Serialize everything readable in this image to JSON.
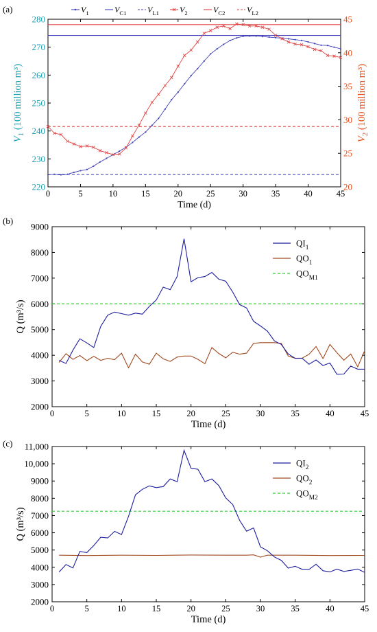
{
  "colors": {
    "axis": "#000000",
    "v1": "#4040b8",
    "vc1": "#4040b8",
    "vl1": "#4040b8",
    "v2": "#e04040",
    "vc2": "#e04040",
    "vl2": "#e04040",
    "left_axis_text": "#1aa0b4",
    "right_axis_text": "#e8501c",
    "qi": "#1c1c9c",
    "qo": "#a04a20",
    "qom": "#2ccf2c"
  },
  "chart_data": [
    {
      "panel_label": "(a)",
      "type": "line",
      "xlabel": "Time (d)",
      "xlim": [
        0,
        45
      ],
      "xticks": [
        "0",
        "5",
        "10",
        "15",
        "20",
        "25",
        "30",
        "35",
        "40",
        "45"
      ],
      "ylabel_left": "V1 (100 million m³)",
      "ylim_left": [
        220,
        280
      ],
      "yticks_left": [
        "220",
        "230",
        "240",
        "250",
        "260",
        "270",
        "280"
      ],
      "ylabel_right": "V2 (100 million m³)",
      "ylim_right": [
        20,
        45
      ],
      "yticks_right": [
        "20",
        "25",
        "30",
        "35",
        "40",
        "45"
      ],
      "legend": [
        "V1",
        "VC1",
        "VL1",
        "V2",
        "VC2",
        "VL2"
      ],
      "legend_position": "top",
      "series": [
        {
          "name": "V1",
          "axis": "left",
          "x": [
            0,
            1,
            2,
            3,
            4,
            5,
            6,
            7,
            8,
            9,
            10,
            11,
            12,
            13,
            14,
            15,
            16,
            17,
            18,
            19,
            20,
            21,
            22,
            23,
            24,
            25,
            26,
            27,
            28,
            29,
            30,
            31,
            32,
            33,
            34,
            35,
            36,
            37,
            38,
            39,
            40,
            41,
            42,
            43,
            44,
            45
          ],
          "values": [
            224.5,
            224.5,
            224.3,
            224.5,
            225.2,
            225.8,
            226.2,
            227.4,
            228.9,
            230.2,
            231.5,
            232.8,
            234.2,
            235.9,
            237.8,
            239.6,
            242.0,
            244.5,
            247.8,
            251.2,
            253.9,
            256.9,
            259.8,
            262.3,
            265.0,
            267.6,
            269.4,
            271.0,
            272.4,
            273.3,
            273.9,
            274.0,
            274.0,
            273.8,
            273.6,
            273.4,
            273.2,
            273.0,
            272.7,
            272.4,
            271.9,
            271.3,
            270.7,
            270.6,
            270.0,
            269.4
          ]
        },
        {
          "name": "V2",
          "axis": "right",
          "x": [
            0,
            1,
            2,
            3,
            4,
            5,
            6,
            7,
            8,
            9,
            10,
            11,
            12,
            13,
            14,
            15,
            16,
            17,
            18,
            19,
            20,
            21,
            22,
            23,
            24,
            25,
            26,
            27,
            28,
            29,
            30,
            31,
            32,
            33,
            34,
            35,
            36,
            37,
            38,
            39,
            40,
            41,
            42,
            43,
            44,
            45
          ],
          "values": [
            29.0,
            28.0,
            27.8,
            26.8,
            26.4,
            26.0,
            26.1,
            25.9,
            25.4,
            25.1,
            24.8,
            24.9,
            25.8,
            27.6,
            29.2,
            31.0,
            32.6,
            33.8,
            35.1,
            36.3,
            38.0,
            39.6,
            40.4,
            41.6,
            42.9,
            43.3,
            43.8,
            44.0,
            43.6,
            44.3,
            44.2,
            44.0,
            44.0,
            43.8,
            43.5,
            42.6,
            42.1,
            41.6,
            41.3,
            41.2,
            40.9,
            40.5,
            40.3,
            39.6,
            39.5,
            39.3
          ]
        },
        {
          "name": "VC1",
          "axis": "left",
          "constant": 274.2
        },
        {
          "name": "VL1",
          "axis": "left",
          "constant": 224.5
        },
        {
          "name": "VC2",
          "axis": "right",
          "constant": 44.2
        },
        {
          "name": "VL2",
          "axis": "right",
          "constant": 29.0
        }
      ]
    },
    {
      "panel_label": "(b)",
      "type": "line",
      "xlabel": "Time (d)",
      "xlim": [
        0,
        45
      ],
      "xticks": [
        "0",
        "5",
        "10",
        "15",
        "20",
        "25",
        "30",
        "35",
        "40",
        "45"
      ],
      "ylabel": "Q (m³/s)",
      "ylim": [
        2000,
        9000
      ],
      "yticks": [
        "2000",
        "3000",
        "4000",
        "5000",
        "6000",
        "7000",
        "8000",
        "9000"
      ],
      "legend": [
        "QI1",
        "QO1",
        "QOM1"
      ],
      "legend_position": "top-right",
      "series": [
        {
          "name": "QI1",
          "x": [
            1,
            2,
            3,
            4,
            5,
            6,
            7,
            8,
            9,
            10,
            11,
            12,
            13,
            14,
            15,
            16,
            17,
            18,
            19,
            20,
            21,
            22,
            23,
            24,
            25,
            26,
            27,
            28,
            29,
            30,
            31,
            32,
            33,
            34,
            35,
            36,
            37,
            38,
            39,
            40,
            41,
            42,
            43,
            44,
            45
          ],
          "values": [
            3800,
            3680,
            4200,
            4640,
            4480,
            4300,
            5120,
            5560,
            5680,
            5620,
            5560,
            5640,
            5600,
            5900,
            6150,
            6650,
            6550,
            7060,
            8530,
            6860,
            7020,
            7060,
            7220,
            6960,
            6880,
            6460,
            5970,
            5840,
            5320,
            5140,
            4940,
            4560,
            4420,
            4050,
            3880,
            3880,
            3650,
            3820,
            3600,
            3700,
            3260,
            3270,
            3580,
            3460,
            3460
          ]
        },
        {
          "name": "QO1",
          "x": [
            1,
            2,
            3,
            4,
            5,
            6,
            7,
            8,
            9,
            10,
            11,
            12,
            13,
            14,
            15,
            16,
            17,
            18,
            19,
            20,
            21,
            22,
            23,
            24,
            25,
            26,
            27,
            28,
            29,
            30,
            31,
            32,
            33,
            34,
            35,
            36,
            37,
            38,
            39,
            40,
            41,
            42,
            43,
            44,
            45
          ],
          "values": [
            3720,
            4060,
            3840,
            3990,
            3790,
            3960,
            3800,
            3880,
            3830,
            4080,
            3510,
            4040,
            3740,
            3650,
            4080,
            3860,
            3760,
            3930,
            3970,
            3970,
            3840,
            3670,
            4300,
            4070,
            3900,
            4120,
            4040,
            4080,
            4460,
            4490,
            4490,
            4490,
            4460,
            3970,
            3880,
            3890,
            4040,
            4340,
            3870,
            4420,
            4100,
            3810,
            4050,
            3550,
            4180
          ]
        },
        {
          "name": "QOM1",
          "constant": 6000
        }
      ]
    },
    {
      "panel_label": "(c)",
      "type": "line",
      "xlabel": "Time (d)",
      "xlim": [
        0,
        45
      ],
      "xticks": [
        "0",
        "5",
        "10",
        "15",
        "20",
        "25",
        "30",
        "35",
        "40",
        "45"
      ],
      "ylabel": "Q (m³/s)",
      "ylim": [
        2000,
        11000
      ],
      "yticks": [
        "2000",
        "3000",
        "4000",
        "5000",
        "6000",
        "7000",
        "8000",
        "9000",
        "10,000",
        "11,000"
      ],
      "legend": [
        "QI2",
        "QO2",
        "QOM2"
      ],
      "legend_position": "top-right",
      "series": [
        {
          "name": "QI2",
          "x": [
            1,
            2,
            3,
            4,
            5,
            6,
            7,
            8,
            9,
            10,
            11,
            12,
            13,
            14,
            15,
            16,
            17,
            18,
            19,
            20,
            21,
            22,
            23,
            24,
            25,
            26,
            27,
            28,
            29,
            30,
            31,
            32,
            33,
            34,
            35,
            36,
            37,
            38,
            39,
            40,
            41,
            42,
            43,
            44,
            45
          ],
          "values": [
            3720,
            4160,
            3960,
            4920,
            4850,
            5260,
            5740,
            5700,
            6080,
            5900,
            6950,
            8200,
            8520,
            8720,
            8620,
            8680,
            9120,
            8960,
            10780,
            9740,
            9680,
            8960,
            9120,
            8740,
            8020,
            7640,
            6720,
            6090,
            6280,
            5180,
            4960,
            4600,
            4400,
            3950,
            4060,
            3880,
            3880,
            4180,
            3800,
            3730,
            3890,
            3760,
            3820,
            3900,
            3700
          ]
        },
        {
          "name": "QO2",
          "x": [
            1,
            5,
            10,
            15,
            20,
            25,
            28,
            29,
            30,
            31,
            35,
            40,
            45
          ],
          "values": [
            4700,
            4680,
            4700,
            4690,
            4710,
            4700,
            4700,
            4720,
            4590,
            4700,
            4700,
            4680,
            4690
          ]
        },
        {
          "name": "QOM2",
          "constant": 7250
        }
      ]
    }
  ]
}
